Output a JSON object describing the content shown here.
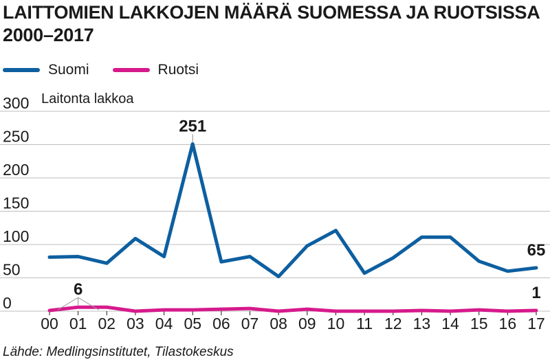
{
  "title": "LAITTOMIEN LAKKOJEN MÄÄRÄ SUOMESSA JA RUOTSISSA 2000–2017",
  "legend": [
    {
      "name": "Suomi",
      "color": "#0d5fa0"
    },
    {
      "name": "Ruotsi",
      "color": "#d61a8c"
    }
  ],
  "source": "Lähde: Medlingsinstitutet, Tilastokeskus",
  "chart_data": {
    "type": "line",
    "ylabel": "Laitonta lakkoa",
    "ylim": [
      0,
      300
    ],
    "yticks": [
      0,
      50,
      100,
      150,
      200,
      250,
      300
    ],
    "categories": [
      "00",
      "01",
      "02",
      "03",
      "04",
      "05",
      "06",
      "07",
      "08",
      "09",
      "10",
      "11",
      "12",
      "13",
      "14",
      "15",
      "16",
      "17"
    ],
    "grid": true,
    "legend_position": "top-left",
    "series": [
      {
        "name": "Suomi",
        "color": "#0d5fa0",
        "values": [
          81,
          82,
          72,
          109,
          82,
          251,
          74,
          82,
          52,
          98,
          121,
          57,
          80,
          111,
          111,
          75,
          60,
          65
        ]
      },
      {
        "name": "Ruotsi",
        "color": "#d61a8c",
        "values": [
          1,
          6,
          6,
          0,
          2,
          2,
          3,
          4,
          0,
          3,
          0,
          0,
          0,
          1,
          0,
          2,
          0,
          1
        ]
      }
    ],
    "annotations": [
      {
        "series": 0,
        "index": 5,
        "text": "251"
      },
      {
        "series": 0,
        "index": 17,
        "text": "65"
      },
      {
        "series": 1,
        "index": 1,
        "text": "6"
      },
      {
        "series": 1,
        "index": 17,
        "text": "1"
      }
    ]
  }
}
